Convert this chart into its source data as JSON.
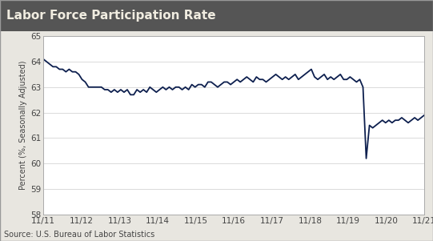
{
  "title": "Labor Force Participation Rate",
  "ylabel": "Percent (%, Seasonally Adjusted)",
  "source": "Source: U.S. Bureau of Labor Statistics",
  "line_color": "#0d1f4e",
  "title_bar_color": "#555555",
  "title_text_color": "#f0ece0",
  "plot_bg_color": "#ffffff",
  "fig_bg_color": "#e8e6e0",
  "ylim": [
    58,
    65
  ],
  "yticks": [
    58,
    59,
    60,
    61,
    62,
    63,
    64,
    65
  ],
  "xtick_labels": [
    "11/11",
    "11/12",
    "11/13",
    "11/14",
    "11/15",
    "11/16",
    "11/17",
    "11/18",
    "11/19",
    "11/20",
    "11/21"
  ],
  "values": [
    64.1,
    64.0,
    63.9,
    63.8,
    63.8,
    63.7,
    63.7,
    63.6,
    63.7,
    63.6,
    63.6,
    63.5,
    63.3,
    63.2,
    63.0,
    63.0,
    63.0,
    63.0,
    63.0,
    62.9,
    62.9,
    62.8,
    62.9,
    62.8,
    62.9,
    62.8,
    62.9,
    62.7,
    62.7,
    62.9,
    62.8,
    62.9,
    62.8,
    63.0,
    62.9,
    62.8,
    62.9,
    63.0,
    62.9,
    63.0,
    62.9,
    63.0,
    63.0,
    62.9,
    63.0,
    62.9,
    63.1,
    63.0,
    63.1,
    63.1,
    63.0,
    63.2,
    63.2,
    63.1,
    63.0,
    63.1,
    63.2,
    63.2,
    63.1,
    63.2,
    63.3,
    63.2,
    63.3,
    63.4,
    63.3,
    63.2,
    63.4,
    63.3,
    63.3,
    63.2,
    63.3,
    63.4,
    63.5,
    63.4,
    63.3,
    63.4,
    63.3,
    63.4,
    63.5,
    63.3,
    63.4,
    63.5,
    63.6,
    63.7,
    63.4,
    63.3,
    63.4,
    63.5,
    63.3,
    63.4,
    63.3,
    63.4,
    63.5,
    63.3,
    63.3,
    63.4,
    63.3,
    63.2,
    63.3,
    63.0,
    60.2,
    61.5,
    61.4,
    61.5,
    61.6,
    61.7,
    61.6,
    61.7,
    61.6,
    61.7,
    61.7,
    61.8,
    61.7,
    61.6,
    61.7,
    61.8,
    61.7,
    61.8,
    61.9
  ],
  "title_fontsize": 11,
  "axis_fontsize": 7.5,
  "source_fontsize": 7,
  "ylabel_fontsize": 7,
  "line_width": 1.3,
  "grid_color": "#cccccc",
  "spine_color": "#aaaaaa"
}
